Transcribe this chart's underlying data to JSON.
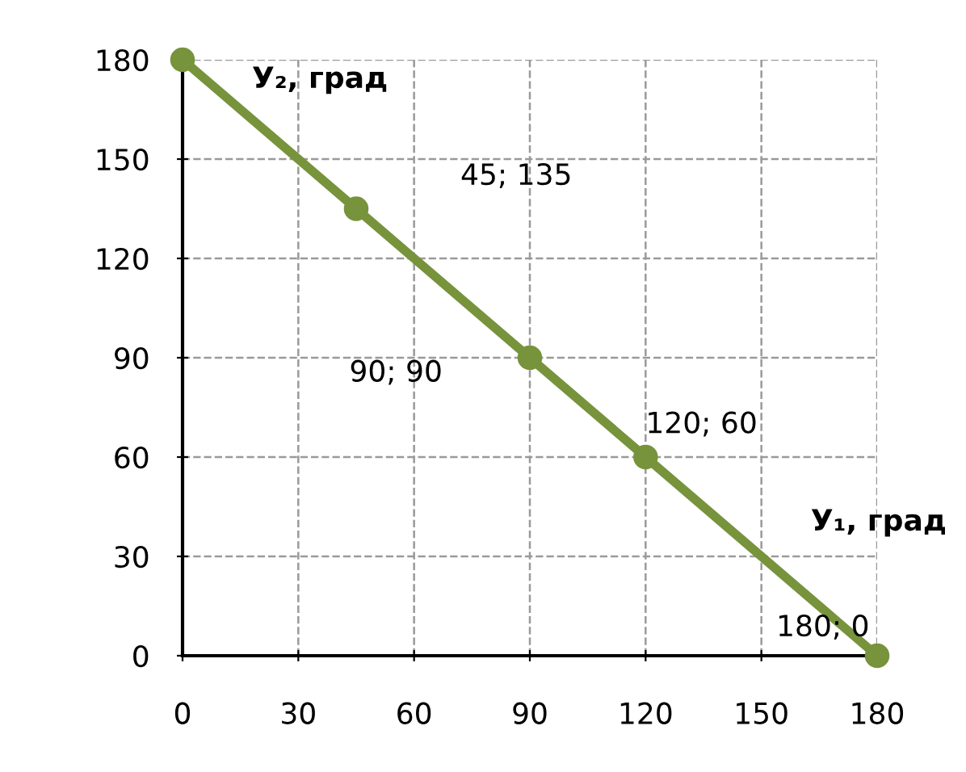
{
  "chart_data": {
    "type": "line",
    "xlabel": "У₁, град",
    "ylabel": "У₂, град",
    "x": [
      0,
      45,
      90,
      120,
      180
    ],
    "series": [
      {
        "color": "#77933c",
        "values": [
          180,
          135,
          90,
          60,
          0
        ]
      }
    ],
    "xlim": [
      0,
      180
    ],
    "ylim": [
      0,
      180
    ],
    "xticks": [
      0,
      30,
      60,
      90,
      120,
      150,
      180
    ],
    "yticks": [
      0,
      30,
      60,
      90,
      120,
      150,
      180
    ],
    "grid": true,
    "marker": "circle",
    "line_style": "solid",
    "annotations": [
      "45; 135",
      "90; 90",
      {
        "text": "120; 60",
        "x": 120,
        "y": 60
      },
      {
        "text": "180; 0",
        "x": 180,
        "y": 0
      }
    ]
  }
}
